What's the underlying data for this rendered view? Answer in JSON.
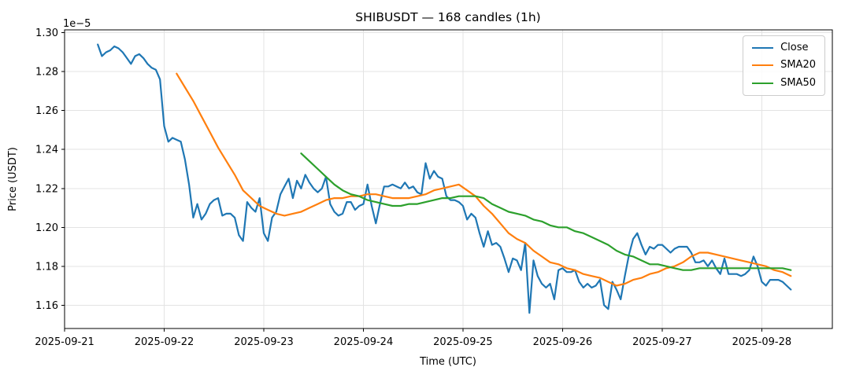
{
  "chart_data": {
    "type": "line",
    "title": "SHIBUSDT — 168 candles (1h)",
    "xlabel": "Time (UTC)",
    "ylabel": "Price (USDT)",
    "grid": true,
    "legend": {
      "position": "upper right",
      "entries": [
        "Close",
        "SMA20",
        "SMA50"
      ]
    },
    "x_axis": {
      "tick_hours": [
        0,
        24,
        48,
        72,
        96,
        120,
        144,
        168
      ],
      "tick_labels": [
        "2025-09-21",
        "2025-09-22",
        "2025-09-23",
        "2025-09-24",
        "2025-09-25",
        "2025-09-26",
        "2025-09-27",
        "2025-09-28"
      ],
      "domain_hours": [
        0,
        185
      ]
    },
    "y_axis": {
      "ticks": [
        1.16,
        1.18,
        1.2,
        1.22,
        1.24,
        1.26,
        1.28,
        1.3
      ],
      "domain": [
        1.148,
        1.3015
      ],
      "offset_label": "1e−5"
    },
    "series": [
      {
        "name": "Close",
        "color": "#1f77b4",
        "start_hour": 8,
        "step_hours": 1,
        "values": [
          1.294,
          1.288,
          1.29,
          1.291,
          1.293,
          1.292,
          1.29,
          1.287,
          1.284,
          1.288,
          1.289,
          1.287,
          1.284,
          1.282,
          1.281,
          1.276,
          1.252,
          1.244,
          1.246,
          1.245,
          1.244,
          1.235,
          1.222,
          1.205,
          1.212,
          1.204,
          1.207,
          1.212,
          1.214,
          1.215,
          1.206,
          1.207,
          1.207,
          1.205,
          1.196,
          1.193,
          1.213,
          1.21,
          1.208,
          1.215,
          1.197,
          1.193,
          1.205,
          1.208,
          1.217,
          1.221,
          1.225,
          1.215,
          1.224,
          1.22,
          1.227,
          1.223,
          1.22,
          1.218,
          1.22,
          1.226,
          1.212,
          1.208,
          1.206,
          1.207,
          1.213,
          1.213,
          1.209,
          1.211,
          1.212,
          1.222,
          1.211,
          1.202,
          1.212,
          1.221,
          1.221,
          1.222,
          1.221,
          1.22,
          1.223,
          1.22,
          1.221,
          1.218,
          1.217,
          1.233,
          1.225,
          1.229,
          1.226,
          1.225,
          1.216,
          1.214,
          1.214,
          1.213,
          1.211,
          1.204,
          1.207,
          1.205,
          1.197,
          1.19,
          1.198,
          1.191,
          1.192,
          1.19,
          1.184,
          1.177,
          1.184,
          1.183,
          1.178,
          1.192,
          1.156,
          1.183,
          1.175,
          1.171,
          1.169,
          1.171,
          1.163,
          1.178,
          1.179,
          1.177,
          1.177,
          1.178,
          1.172,
          1.169,
          1.171,
          1.169,
          1.17,
          1.173,
          1.16,
          1.158,
          1.172,
          1.168,
          1.163,
          1.175,
          1.186,
          1.194,
          1.197,
          1.191,
          1.186,
          1.19,
          1.189,
          1.191,
          1.191,
          1.189,
          1.187,
          1.189,
          1.19,
          1.19,
          1.19,
          1.187,
          1.182,
          1.182,
          1.183,
          1.18,
          1.183,
          1.179,
          1.176,
          1.184,
          1.176,
          1.176,
          1.176,
          1.175,
          1.176,
          1.178,
          1.185,
          1.18,
          1.172,
          1.17,
          1.173,
          1.173,
          1.173,
          1.172,
          1.17,
          1.168
        ]
      },
      {
        "name": "SMA20",
        "color": "#ff7f0e",
        "points": [
          [
            27,
            1.279
          ],
          [
            29,
            1.272
          ],
          [
            31,
            1.265
          ],
          [
            33,
            1.257
          ],
          [
            35,
            1.249
          ],
          [
            37,
            1.241
          ],
          [
            39,
            1.234
          ],
          [
            41,
            1.227
          ],
          [
            43,
            1.219
          ],
          [
            45,
            1.215
          ],
          [
            47,
            1.211
          ],
          [
            49,
            1.209
          ],
          [
            51,
            1.207
          ],
          [
            53,
            1.206
          ],
          [
            55,
            1.207
          ],
          [
            57,
            1.208
          ],
          [
            59,
            1.21
          ],
          [
            61,
            1.212
          ],
          [
            63,
            1.214
          ],
          [
            65,
            1.215
          ],
          [
            67,
            1.215
          ],
          [
            69,
            1.216
          ],
          [
            71,
            1.216
          ],
          [
            73,
            1.217
          ],
          [
            75,
            1.217
          ],
          [
            77,
            1.216
          ],
          [
            79,
            1.215
          ],
          [
            81,
            1.215
          ],
          [
            83,
            1.215
          ],
          [
            85,
            1.216
          ],
          [
            87,
            1.217
          ],
          [
            89,
            1.219
          ],
          [
            91,
            1.22
          ],
          [
            93,
            1.221
          ],
          [
            95,
            1.222
          ],
          [
            97,
            1.219
          ],
          [
            99,
            1.216
          ],
          [
            101,
            1.211
          ],
          [
            103,
            1.207
          ],
          [
            105,
            1.202
          ],
          [
            107,
            1.197
          ],
          [
            109,
            1.194
          ],
          [
            111,
            1.192
          ],
          [
            113,
            1.188
          ],
          [
            115,
            1.185
          ],
          [
            117,
            1.182
          ],
          [
            119,
            1.181
          ],
          [
            121,
            1.179
          ],
          [
            123,
            1.178
          ],
          [
            125,
            1.176
          ],
          [
            127,
            1.175
          ],
          [
            129,
            1.174
          ],
          [
            131,
            1.172
          ],
          [
            133,
            1.17
          ],
          [
            135,
            1.171
          ],
          [
            137,
            1.173
          ],
          [
            139,
            1.174
          ],
          [
            141,
            1.176
          ],
          [
            143,
            1.177
          ],
          [
            145,
            1.179
          ],
          [
            147,
            1.18
          ],
          [
            149,
            1.182
          ],
          [
            151,
            1.185
          ],
          [
            153,
            1.187
          ],
          [
            155,
            1.187
          ],
          [
            157,
            1.186
          ],
          [
            159,
            1.185
          ],
          [
            161,
            1.184
          ],
          [
            163,
            1.183
          ],
          [
            165,
            1.182
          ],
          [
            167,
            1.181
          ],
          [
            169,
            1.18
          ],
          [
            171,
            1.178
          ],
          [
            173,
            1.177
          ],
          [
            175,
            1.175
          ]
        ]
      },
      {
        "name": "SMA50",
        "color": "#2ca02c",
        "points": [
          [
            57,
            1.238
          ],
          [
            59,
            1.234
          ],
          [
            61,
            1.23
          ],
          [
            63,
            1.226
          ],
          [
            65,
            1.222
          ],
          [
            67,
            1.219
          ],
          [
            69,
            1.217
          ],
          [
            71,
            1.216
          ],
          [
            73,
            1.214
          ],
          [
            75,
            1.213
          ],
          [
            77,
            1.212
          ],
          [
            79,
            1.211
          ],
          [
            81,
            1.211
          ],
          [
            83,
            1.212
          ],
          [
            85,
            1.212
          ],
          [
            87,
            1.213
          ],
          [
            89,
            1.214
          ],
          [
            91,
            1.215
          ],
          [
            93,
            1.215
          ],
          [
            95,
            1.216
          ],
          [
            97,
            1.216
          ],
          [
            99,
            1.216
          ],
          [
            101,
            1.215
          ],
          [
            103,
            1.212
          ],
          [
            105,
            1.21
          ],
          [
            107,
            1.208
          ],
          [
            109,
            1.207
          ],
          [
            111,
            1.206
          ],
          [
            113,
            1.204
          ],
          [
            115,
            1.203
          ],
          [
            117,
            1.201
          ],
          [
            119,
            1.2
          ],
          [
            121,
            1.2
          ],
          [
            123,
            1.198
          ],
          [
            125,
            1.197
          ],
          [
            127,
            1.195
          ],
          [
            129,
            1.193
          ],
          [
            131,
            1.191
          ],
          [
            133,
            1.188
          ],
          [
            135,
            1.186
          ],
          [
            137,
            1.185
          ],
          [
            139,
            1.183
          ],
          [
            141,
            1.181
          ],
          [
            143,
            1.181
          ],
          [
            145,
            1.18
          ],
          [
            147,
            1.179
          ],
          [
            149,
            1.178
          ],
          [
            151,
            1.178
          ],
          [
            153,
            1.179
          ],
          [
            155,
            1.179
          ],
          [
            157,
            1.179
          ],
          [
            159,
            1.179
          ],
          [
            161,
            1.179
          ],
          [
            163,
            1.179
          ],
          [
            165,
            1.179
          ],
          [
            167,
            1.179
          ],
          [
            169,
            1.179
          ],
          [
            171,
            1.179
          ],
          [
            173,
            1.179
          ],
          [
            175,
            1.178
          ]
        ]
      }
    ]
  }
}
